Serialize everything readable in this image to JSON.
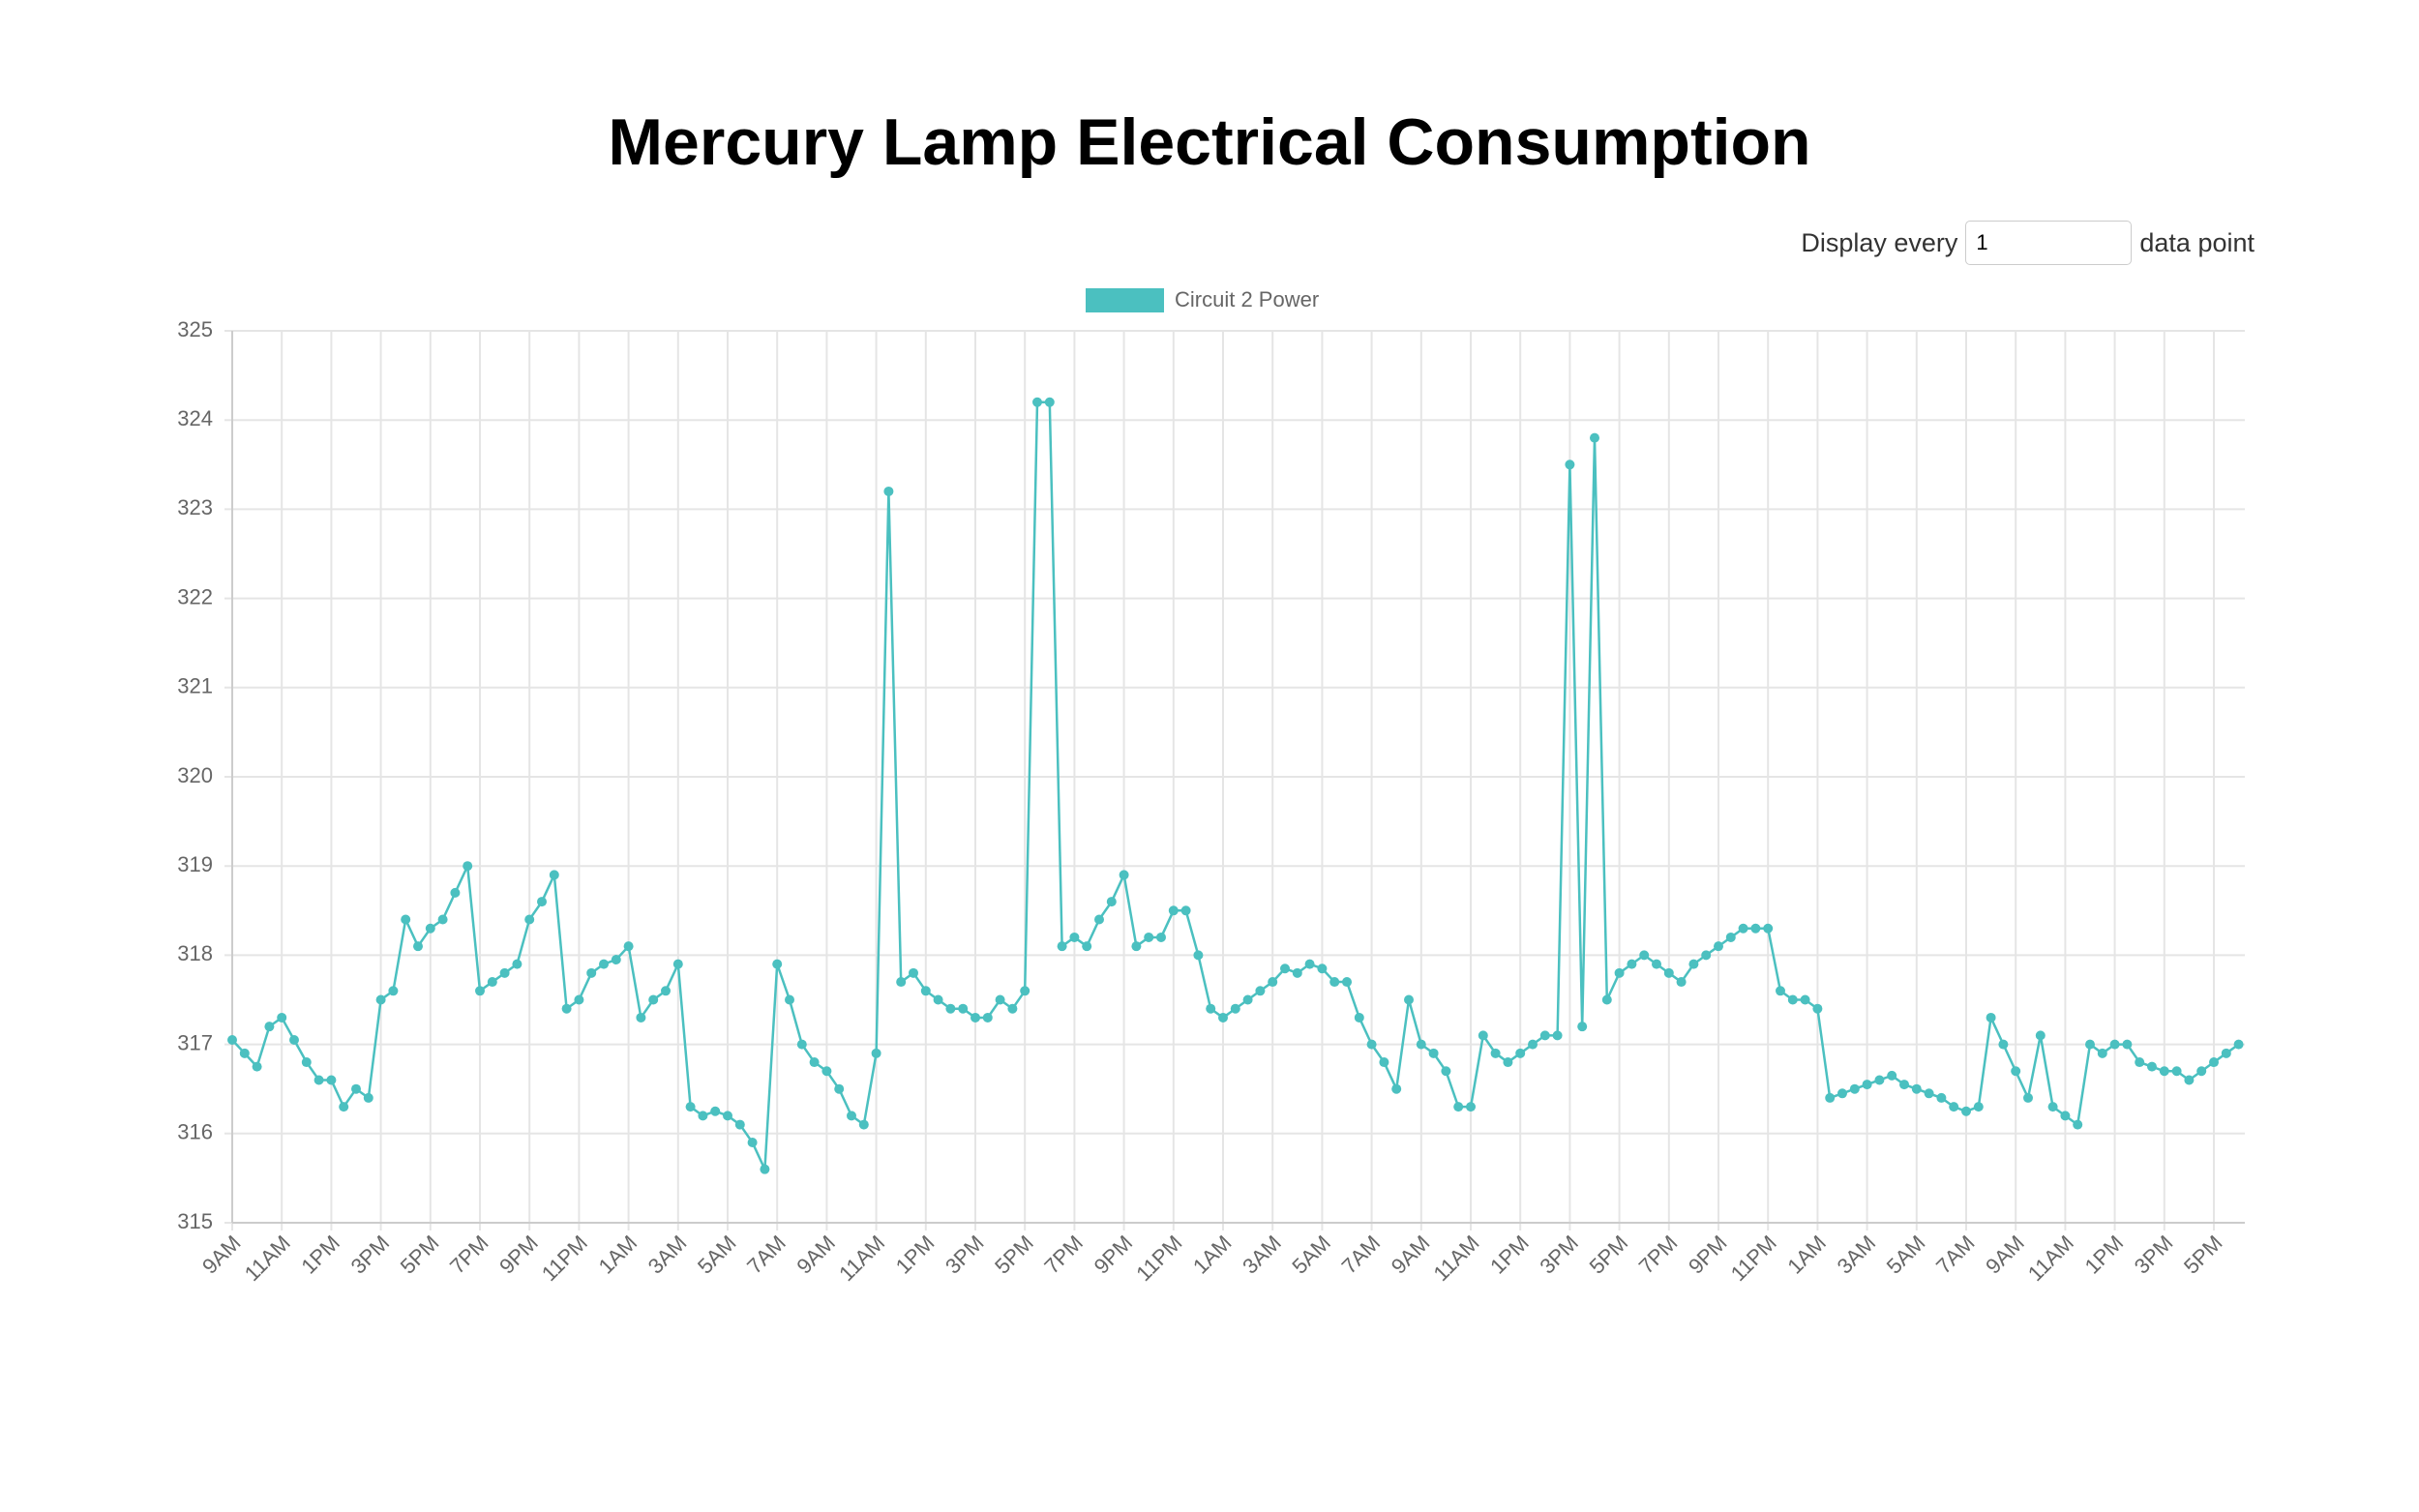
{
  "header": {
    "title": "Mercury Lamp Electrical Consumption"
  },
  "controls": {
    "prefix": "Display every",
    "input_value": "1",
    "suffix": "data point"
  },
  "chart_data": {
    "type": "line",
    "x": [
      0,
      0.5,
      1,
      1.5,
      2,
      2.5,
      3,
      3.5,
      4,
      4.5,
      5,
      5.5,
      6,
      6.5,
      7,
      7.5,
      8,
      8.5,
      9,
      9.5,
      10,
      10.5,
      11,
      11.5,
      12,
      12.5,
      13,
      13.5,
      14,
      14.5,
      15,
      15.5,
      16,
      16.5,
      17,
      17.5,
      18,
      18.5,
      19,
      19.5,
      20,
      20.5,
      21,
      21.5,
      22,
      22.5,
      23,
      23.5,
      24,
      24.5,
      25,
      25.5,
      26,
      26.5,
      27,
      27.5,
      28,
      28.5,
      29,
      29.5,
      30,
      30.5,
      31,
      31.5,
      32,
      32.5,
      33,
      33.5,
      34,
      34.5,
      35,
      35.5,
      36,
      36.5,
      37,
      37.5,
      38,
      38.5,
      39,
      39.5,
      40,
      40.5,
      41,
      41.5,
      42,
      42.5,
      43,
      43.5,
      44,
      44.5,
      45,
      45.5,
      46,
      46.5,
      47,
      47.5,
      48,
      48.5,
      49,
      49.5,
      50,
      50.5,
      51,
      51.5,
      52,
      52.5,
      53,
      53.5,
      54,
      54.5,
      55,
      55.5,
      56,
      56.5,
      57,
      57.5,
      58,
      58.5,
      59,
      59.5,
      60,
      60.5,
      61,
      61.5,
      62,
      62.5,
      63,
      63.5,
      64,
      64.5,
      65,
      65.5,
      66,
      66.5,
      67,
      67.5,
      68,
      68.5,
      69,
      69.5,
      70,
      70.5,
      71,
      71.5,
      72,
      72.5,
      73,
      73.5,
      74,
      74.5,
      75,
      75.5,
      76,
      76.5,
      77,
      77.5,
      78,
      78.5,
      79,
      79.5,
      80,
      80.5,
      81
    ],
    "series": [
      {
        "name": "Circuit 2 Power",
        "color": "#4bc0c0",
        "values": [
          317.05,
          316.9,
          316.75,
          317.2,
          317.3,
          317.05,
          316.8,
          316.6,
          316.6,
          316.3,
          316.5,
          316.4,
          317.5,
          317.6,
          318.4,
          318.1,
          318.3,
          318.4,
          318.7,
          319.0,
          317.6,
          317.7,
          317.8,
          317.9,
          318.4,
          318.6,
          318.9,
          317.4,
          317.5,
          317.8,
          317.9,
          317.95,
          318.1,
          317.3,
          317.5,
          317.6,
          317.9,
          316.3,
          316.2,
          316.25,
          316.2,
          316.1,
          315.9,
          315.6,
          317.9,
          317.5,
          317.0,
          316.8,
          316.7,
          316.5,
          316.2,
          316.1,
          316.9,
          323.2,
          317.7,
          317.8,
          317.6,
          317.5,
          317.4,
          317.4,
          317.3,
          317.3,
          317.5,
          317.4,
          317.6,
          324.2,
          324.2,
          318.1,
          318.2,
          318.1,
          318.4,
          318.6,
          318.9,
          318.1,
          318.2,
          318.2,
          318.5,
          318.5,
          318.0,
          317.4,
          317.3,
          317.4,
          317.5,
          317.6,
          317.7,
          317.85,
          317.8,
          317.9,
          317.85,
          317.7,
          317.7,
          317.3,
          317.0,
          316.8,
          316.5,
          317.5,
          317.0,
          316.9,
          316.7,
          316.3,
          316.3,
          317.1,
          316.9,
          316.8,
          316.9,
          317.0,
          317.1,
          317.1,
          323.5,
          317.2,
          323.8,
          317.5,
          317.8,
          317.9,
          318.0,
          317.9,
          317.8,
          317.7,
          317.9,
          318.0,
          318.1,
          318.2,
          318.3,
          318.3,
          318.3,
          317.6,
          317.5,
          317.5,
          317.4,
          316.4,
          316.45,
          316.5,
          316.55,
          316.6,
          316.65,
          316.55,
          316.5,
          316.45,
          316.4,
          316.3,
          316.25,
          316.3,
          317.3,
          317.0,
          316.7,
          316.4,
          317.1,
          316.3,
          316.2,
          316.1,
          317.0,
          316.9,
          317.0,
          317.0,
          316.8,
          316.75,
          316.7,
          316.7,
          316.6,
          316.7,
          316.8,
          316.9,
          317.0
        ]
      }
    ],
    "xlim": [
      0,
      81.25
    ],
    "xticks": [
      {
        "value": 0,
        "label": "9AM"
      },
      {
        "value": 2,
        "label": "11AM"
      },
      {
        "value": 4,
        "label": "1PM"
      },
      {
        "value": 6,
        "label": "3PM"
      },
      {
        "value": 8,
        "label": "5PM"
      },
      {
        "value": 10,
        "label": "7PM"
      },
      {
        "value": 12,
        "label": "9PM"
      },
      {
        "value": 14,
        "label": "11PM"
      },
      {
        "value": 16,
        "label": "1AM"
      },
      {
        "value": 18,
        "label": "3AM"
      },
      {
        "value": 20,
        "label": "5AM"
      },
      {
        "value": 22,
        "label": "7AM"
      },
      {
        "value": 24,
        "label": "9AM"
      },
      {
        "value": 26,
        "label": "11AM"
      },
      {
        "value": 28,
        "label": "1PM"
      },
      {
        "value": 30,
        "label": "3PM"
      },
      {
        "value": 32,
        "label": "5PM"
      },
      {
        "value": 34,
        "label": "7PM"
      },
      {
        "value": 36,
        "label": "9PM"
      },
      {
        "value": 38,
        "label": "11PM"
      },
      {
        "value": 40,
        "label": "1AM"
      },
      {
        "value": 42,
        "label": "3AM"
      },
      {
        "value": 44,
        "label": "5AM"
      },
      {
        "value": 46,
        "label": "7AM"
      },
      {
        "value": 48,
        "label": "9AM"
      },
      {
        "value": 50,
        "label": "11AM"
      },
      {
        "value": 52,
        "label": "1PM"
      },
      {
        "value": 54,
        "label": "3PM"
      },
      {
        "value": 56,
        "label": "5PM"
      },
      {
        "value": 58,
        "label": "7PM"
      },
      {
        "value": 60,
        "label": "9PM"
      },
      {
        "value": 62,
        "label": "11PM"
      },
      {
        "value": 64,
        "label": "1AM"
      },
      {
        "value": 66,
        "label": "3AM"
      },
      {
        "value": 68,
        "label": "5AM"
      },
      {
        "value": 70,
        "label": "7AM"
      },
      {
        "value": 72,
        "label": "9AM"
      },
      {
        "value": 74,
        "label": "11AM"
      },
      {
        "value": 76,
        "label": "1PM"
      },
      {
        "value": 78,
        "label": "3PM"
      },
      {
        "value": 80,
        "label": "5PM"
      }
    ],
    "ylim": [
      315,
      325
    ],
    "yticks": [
      315,
      316,
      317,
      318,
      319,
      320,
      321,
      322,
      323,
      324,
      325
    ],
    "grid": true,
    "legend": "top"
  }
}
